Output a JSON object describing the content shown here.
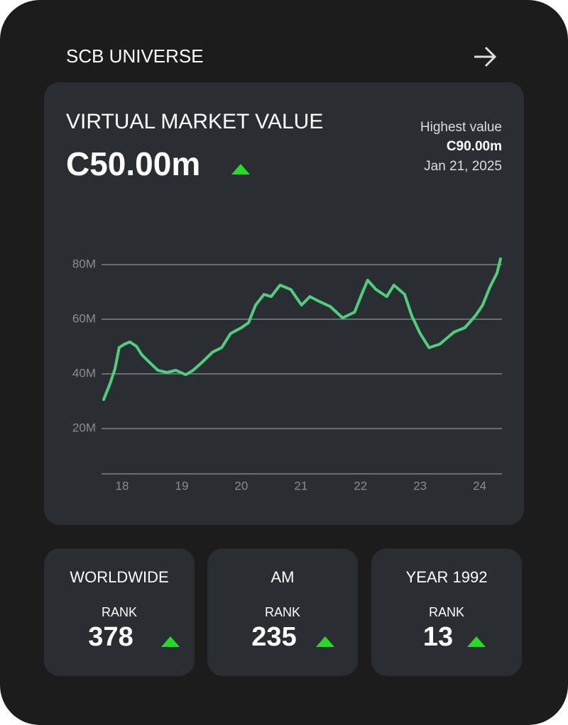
{
  "header": {
    "title": "SCB UNIVERSE"
  },
  "card": {
    "title": "VIRTUAL MARKET VALUE",
    "value": "C50.00m",
    "highest_label": "Highest value",
    "highest_value": "C90.00m",
    "highest_date": "Jan 21, 2025"
  },
  "chart_data": {
    "type": "line",
    "color": "#4cd07d",
    "x": [
      17.69,
      17.8,
      17.88,
      17.95,
      18.04,
      18.13,
      18.24,
      18.33,
      18.45,
      18.6,
      18.75,
      18.9,
      19.07,
      19.19,
      19.35,
      19.52,
      19.67,
      19.82,
      20.0,
      20.12,
      20.24,
      20.38,
      20.5,
      20.65,
      20.83,
      21.01,
      21.15,
      21.31,
      21.49,
      21.7,
      21.9,
      22.02,
      22.12,
      22.26,
      22.44,
      22.56,
      22.74,
      22.86,
      23.0,
      23.15,
      23.33,
      23.57,
      23.75,
      23.93,
      24.05,
      24.17,
      24.29,
      24.35
    ],
    "values": [
      30.6,
      36.6,
      41.8,
      49.6,
      50.9,
      51.7,
      50.1,
      47,
      44.4,
      41.3,
      40.5,
      41.3,
      39.7,
      41.3,
      44.4,
      48,
      49.6,
      54.8,
      56.9,
      58.7,
      65.2,
      69.1,
      68.3,
      72.5,
      70.9,
      65.2,
      68.3,
      66.5,
      64.7,
      60.5,
      62.6,
      69.1,
      74.3,
      70.9,
      68.3,
      72.5,
      69.1,
      61.3,
      54.8,
      49.6,
      50.9,
      55.3,
      56.9,
      61.3,
      65.2,
      71.7,
      76.9,
      82.1
    ],
    "xlim": [
      17.69,
      24.35
    ],
    "xticks": [
      18,
      19,
      20,
      21,
      22,
      23,
      24
    ],
    "ylim": [
      3.4,
      82.6
    ],
    "yticks": [
      {
        "value": 20,
        "label": "20M"
      },
      {
        "value": 40,
        "label": "40M"
      },
      {
        "value": 60,
        "label": "60M"
      },
      {
        "value": 80,
        "label": "80M"
      }
    ],
    "grid": true
  },
  "stats": [
    {
      "name": "WORLDWIDE",
      "label": "RANK",
      "value": 378
    },
    {
      "name": "AM",
      "label": "RANK",
      "value": 235
    },
    {
      "name": "YEAR 1992",
      "label": "RANK",
      "value": 13
    }
  ]
}
